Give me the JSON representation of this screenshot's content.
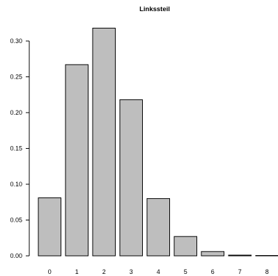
{
  "chart_data": {
    "type": "bar",
    "title": "Linkssteil",
    "xlabel": "",
    "ylabel": "",
    "categories": [
      "0",
      "1",
      "2",
      "3",
      "4",
      "5",
      "6",
      "7",
      "8"
    ],
    "values": [
      0.081,
      0.267,
      0.318,
      0.218,
      0.08,
      0.027,
      0.006,
      0.001,
      0.0001
    ],
    "ylim": [
      0,
      0.32
    ],
    "yticks": [
      0.0,
      0.05,
      0.1,
      0.15,
      0.2,
      0.25,
      0.3
    ],
    "ytick_labels": [
      "0.00",
      "0.05",
      "0.10",
      "0.15",
      "0.20",
      "0.25",
      "0.30"
    ],
    "grid": false,
    "bar_fill": "#bebebe",
    "bar_stroke": "#000000"
  }
}
